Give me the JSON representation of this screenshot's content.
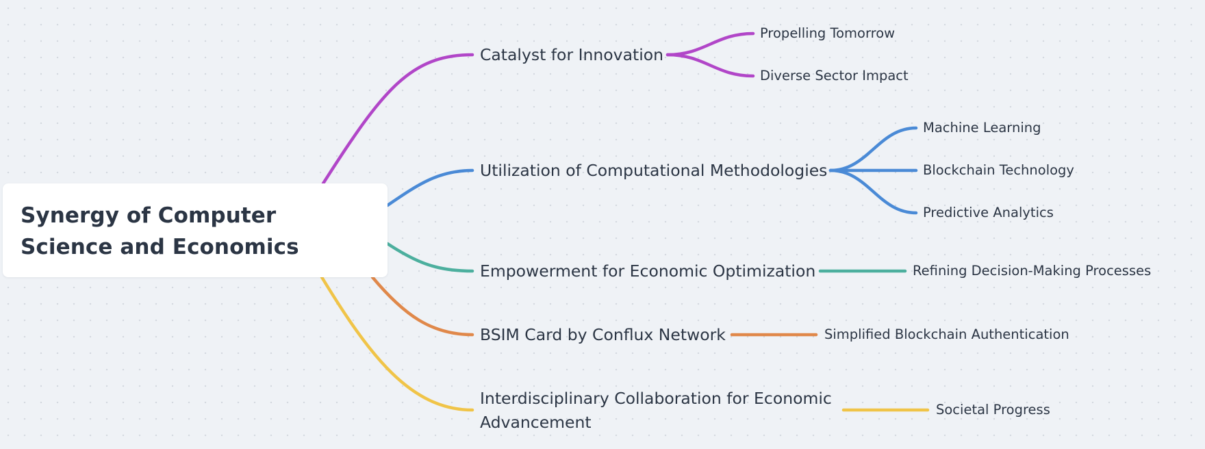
{
  "mindmap": {
    "root": {
      "title": "Synergy of Computer Science and Economics"
    },
    "branches": [
      {
        "label": "Catalyst for Innovation",
        "color": "#b146c8",
        "children": [
          "Propelling Tomorrow",
          "Diverse Sector Impact"
        ]
      },
      {
        "label": "Utilization of Computational Methodologies",
        "color": "#4a8ad6",
        "children": [
          "Machine Learning",
          "Blockchain Technology",
          "Predictive Analytics"
        ]
      },
      {
        "label": "Empowerment for Economic Optimization",
        "color": "#4caf9e",
        "children": [
          "Refining Decision-Making Processes"
        ]
      },
      {
        "label": "BSIM Card by Conflux Network",
        "color": "#e0884a",
        "children": [
          "Simplified Blockchain Authentication"
        ]
      },
      {
        "label": "Interdisciplinary Collaboration for Economic Advancement",
        "color": "#f0c448",
        "children": [
          "Societal Progress"
        ]
      }
    ]
  }
}
